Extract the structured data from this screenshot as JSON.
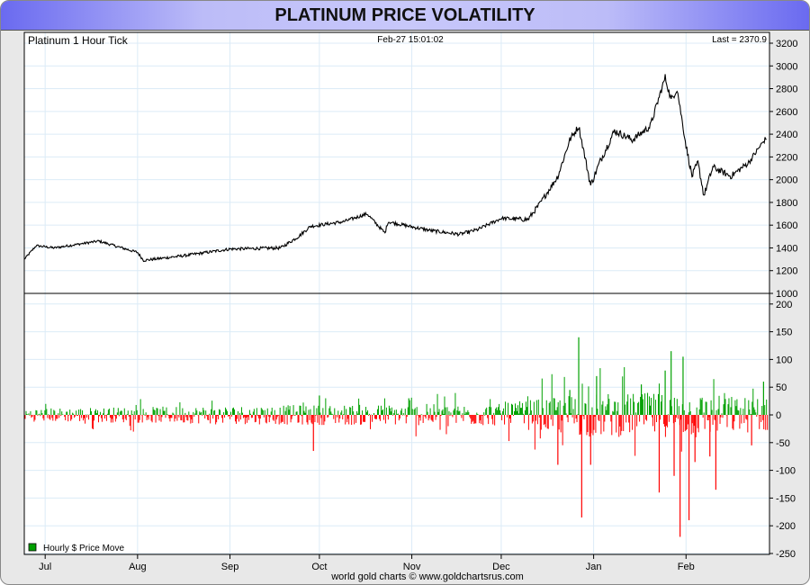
{
  "title": "PLATINUM PRICE VOLATILITY",
  "footer": "world gold charts © www.goldchartsrus.com",
  "chart_data": [
    {
      "type": "line",
      "title": "Platinum 1 Hour Tick",
      "timestamp": "Feb-27  15:01:02",
      "last_label": "Last = 2370.9",
      "ylim": [
        1000,
        3200
      ],
      "yticks": [
        1000,
        1200,
        1400,
        1600,
        1800,
        2000,
        2200,
        2400,
        2600,
        2800,
        3000,
        3200
      ],
      "x_unit": "days since Jul 1",
      "xlim": [
        -7,
        243
      ],
      "xticks": [
        {
          "label": "Jul",
          "day": 0
        },
        {
          "label": "Aug",
          "day": 31
        },
        {
          "label": "Sep",
          "day": 62
        },
        {
          "label": "Oct",
          "day": 92
        },
        {
          "label": "Nov",
          "day": 123
        },
        {
          "label": "Dec",
          "day": 153
        },
        {
          "label": "Jan",
          "day": 184
        },
        {
          "label": "Feb",
          "day": 215
        }
      ],
      "points": [
        [
          -7,
          1300
        ],
        [
          -3,
          1420
        ],
        [
          3,
          1400
        ],
        [
          18,
          1460
        ],
        [
          31,
          1360
        ],
        [
          33,
          1290
        ],
        [
          46,
          1330
        ],
        [
          62,
          1390
        ],
        [
          79,
          1400
        ],
        [
          85,
          1500
        ],
        [
          89,
          1590
        ],
        [
          100,
          1630
        ],
        [
          108,
          1700
        ],
        [
          114,
          1530
        ],
        [
          115,
          1630
        ],
        [
          124,
          1580
        ],
        [
          130,
          1550
        ],
        [
          139,
          1520
        ],
        [
          145,
          1560
        ],
        [
          153,
          1660
        ],
        [
          162,
          1650
        ],
        [
          166,
          1790
        ],
        [
          172,
          2030
        ],
        [
          176,
          2350
        ],
        [
          179,
          2470
        ],
        [
          183,
          1950
        ],
        [
          186,
          2150
        ],
        [
          191,
          2430
        ],
        [
          197,
          2350
        ],
        [
          203,
          2470
        ],
        [
          208,
          2900
        ],
        [
          210,
          2700
        ],
        [
          212,
          2800
        ],
        [
          215,
          2300
        ],
        [
          217,
          2030
        ],
        [
          219,
          2150
        ],
        [
          221,
          1860
        ],
        [
          224,
          2110
        ],
        [
          230,
          2030
        ],
        [
          236,
          2150
        ],
        [
          240,
          2300
        ],
        [
          242,
          2370.9
        ]
      ],
      "color": "#000000"
    },
    {
      "type": "bar",
      "legend": "Hourly $ Price Move",
      "legend_position": "bottom-left",
      "ylim": [
        -250,
        200
      ],
      "yticks": [
        -250,
        -200,
        -150,
        -100,
        -50,
        0,
        50,
        100,
        150,
        200
      ],
      "up_color": "#00a000",
      "down_color": "#ff0000",
      "typical_range": [
        [
          -7,
          12
        ],
        [
          85,
          18
        ],
        [
          153,
          20
        ],
        [
          172,
          35
        ],
        [
          183,
          40
        ],
        [
          215,
          40
        ],
        [
          243,
          30
        ]
      ],
      "spikes": [
        [
          90,
          -65
        ],
        [
          92,
          35
        ],
        [
          122,
          30
        ],
        [
          172,
          -90
        ],
        [
          176,
          45
        ],
        [
          179,
          140
        ],
        [
          180,
          -185
        ],
        [
          183,
          -90
        ],
        [
          185,
          70
        ],
        [
          200,
          55
        ],
        [
          206,
          -140
        ],
        [
          208,
          80
        ],
        [
          210,
          115
        ],
        [
          211,
          -110
        ],
        [
          213,
          -220
        ],
        [
          214,
          105
        ],
        [
          216,
          -190
        ],
        [
          218,
          -85
        ],
        [
          223,
          -75
        ],
        [
          225,
          -135
        ],
        [
          237,
          -55
        ],
        [
          241,
          60
        ]
      ]
    }
  ]
}
